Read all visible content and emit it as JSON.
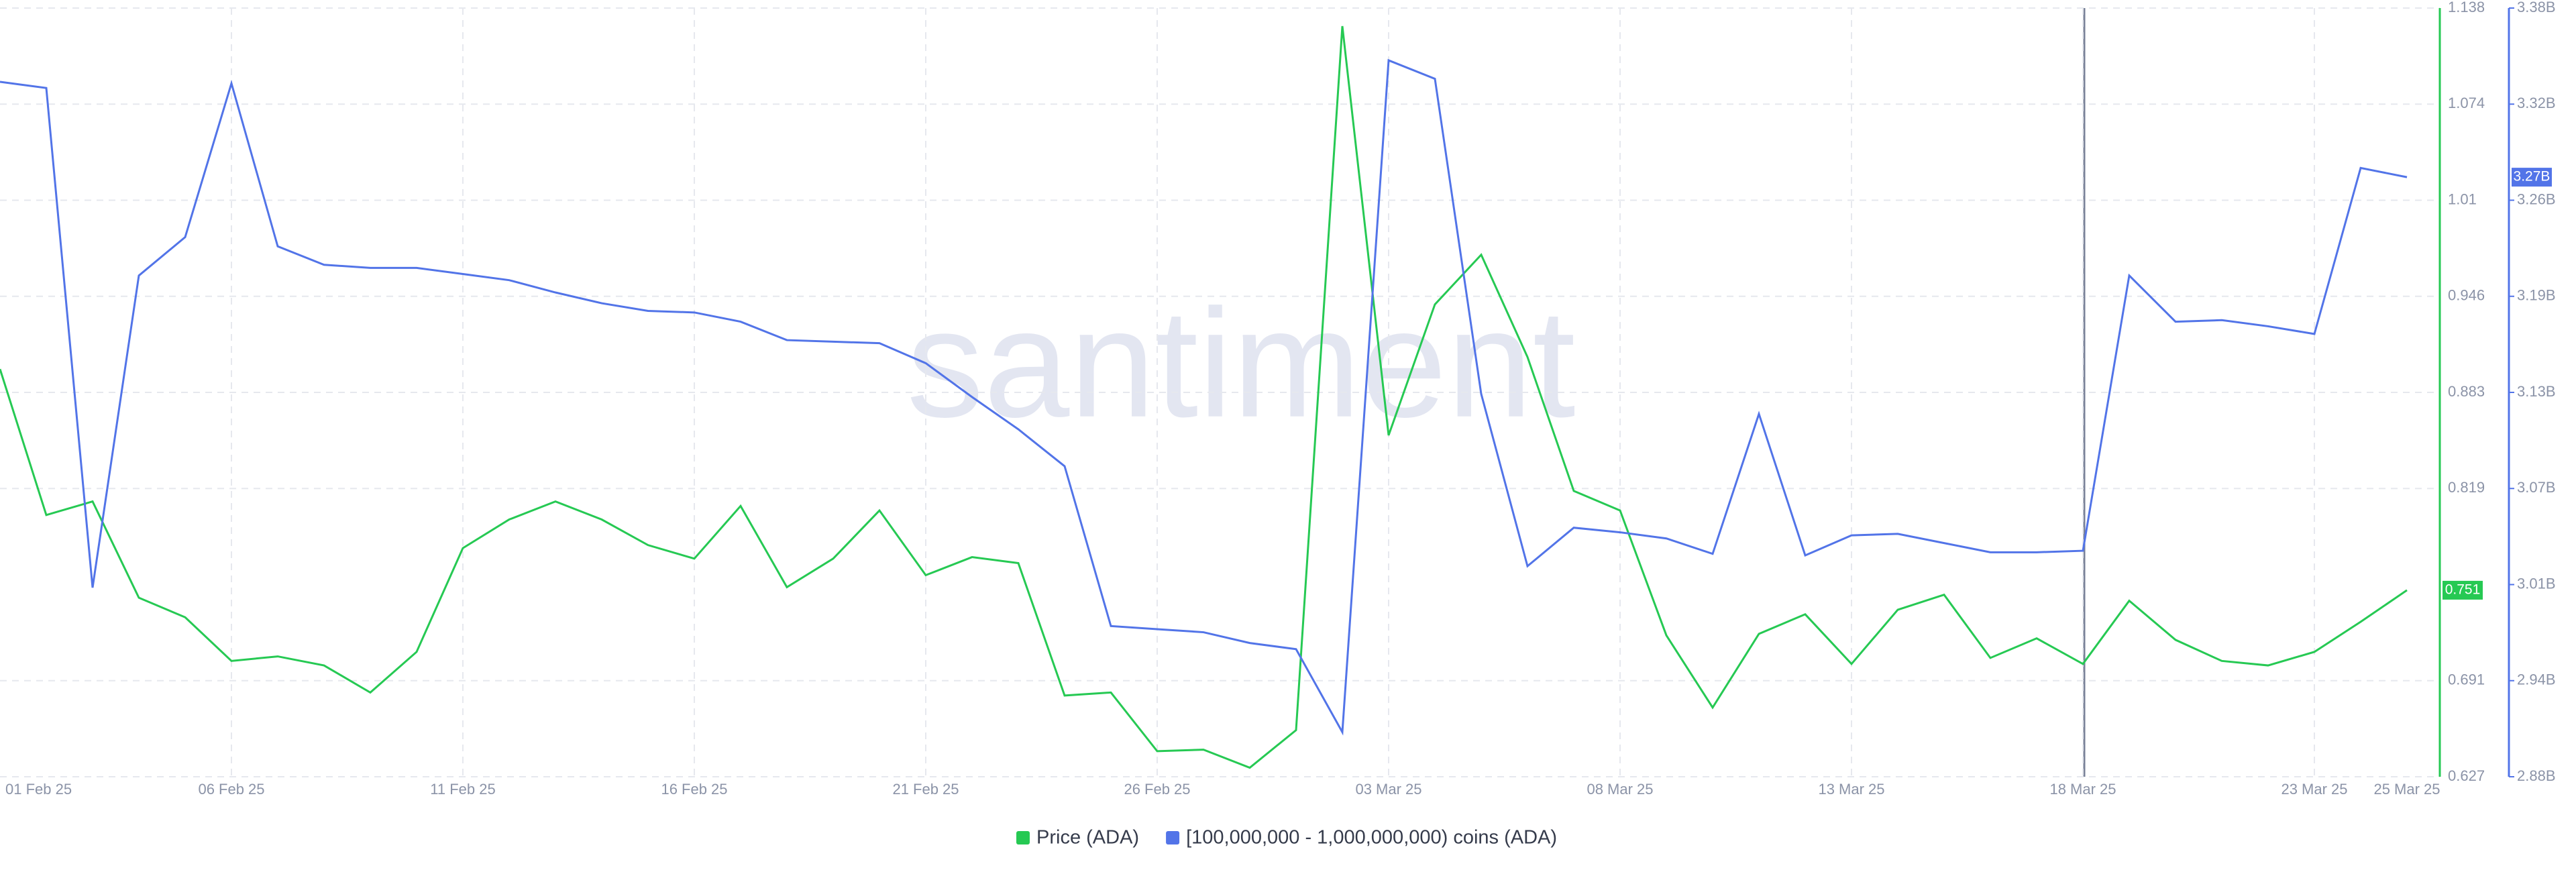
{
  "chart_data": {
    "type": "line",
    "watermark": "santiment",
    "categories": [
      "01 Feb 25",
      null,
      null,
      null,
      null,
      "06 Feb 25",
      null,
      null,
      null,
      null,
      "11 Feb 25",
      null,
      null,
      null,
      null,
      "16 Feb 25",
      null,
      null,
      null,
      null,
      "21 Feb 25",
      null,
      null,
      null,
      null,
      "26 Feb 25",
      null,
      null,
      null,
      null,
      "03 Mar 25",
      null,
      null,
      null,
      null,
      "08 Mar 25",
      null,
      null,
      null,
      null,
      "13 Mar 25",
      null,
      null,
      null,
      null,
      "18 Mar 25",
      null,
      null,
      null,
      null,
      "23 Mar 25",
      null,
      "25 Mar 25"
    ],
    "series": [
      {
        "name": "Price (ADA)",
        "color": "#26c953",
        "axis": "y",
        "last_label": "0.751",
        "values": [
          0.898,
          0.801,
          0.81,
          0.746,
          0.733,
          0.704,
          0.707,
          0.701,
          0.683,
          0.71,
          0.779,
          0.798,
          0.81,
          0.798,
          0.781,
          0.772,
          0.807,
          0.753,
          0.772,
          0.804,
          0.761,
          0.773,
          0.769,
          0.681,
          0.683,
          0.644,
          0.645,
          0.633,
          0.658,
          1.126,
          0.854,
          0.941,
          0.974,
          0.906,
          0.817,
          0.804,
          0.721,
          0.673,
          0.722,
          0.735,
          0.702,
          0.738,
          0.748,
          0.706,
          0.719,
          0.702,
          0.744,
          0.718,
          0.704,
          0.701,
          0.71,
          0.73,
          0.751
        ]
      },
      {
        "name": "[100,000,000 - 1,000,000,000) coins (ADA)",
        "color": "#5274e8",
        "axis": "y2",
        "last_label": "3.27B",
        "values": [
          3332000000,
          3328000000,
          3003000000,
          3206000000,
          3231000000,
          3331000000,
          3225000000,
          3213000000,
          3211000000,
          3211000000,
          3207000000,
          3203000000,
          3195000000,
          3188000000,
          3183000000,
          3182000000,
          3176000000,
          3164000000,
          3163000000,
          3162000000,
          3149000000,
          3127000000,
          3106000000,
          3082000000,
          2978000000,
          2976000000,
          2974000000,
          2967000000,
          2963000000,
          2909000000,
          3346000000,
          3334000000,
          3129000000,
          3017000000,
          3042000000,
          3039000000,
          3035000000,
          3025000000,
          3116000000,
          3024000000,
          3037000000,
          3038000000,
          3032000000,
          3026000000,
          3026000000,
          3027000000,
          3206000000,
          3176000000,
          3177000000,
          3173000000,
          3168000000,
          3276000000,
          3270000000
        ]
      }
    ],
    "ylim": [
      0.627,
      1.138
    ],
    "yticks": [
      {
        "value": 0.627,
        "label": "0.627"
      },
      {
        "value": 0.690875,
        "label": "0.691"
      },
      {
        "value": 0.818625,
        "label": "0.819"
      },
      {
        "value": 0.8825,
        "label": "0.883"
      },
      {
        "value": 0.946375,
        "label": "0.946"
      },
      {
        "value": 1.01025,
        "label": "1.01"
      },
      {
        "value": 1.074125,
        "label": "1.074"
      },
      {
        "value": 1.138,
        "label": "1.138"
      }
    ],
    "y2lim": [
      2880000000,
      3380000000
    ],
    "y2ticks": [
      {
        "value": 2880000000,
        "label": "2.88B"
      },
      {
        "value": 2942500000,
        "label": "2.94B"
      },
      {
        "value": 3005000000,
        "label": "3.01B"
      },
      {
        "value": 3067500000,
        "label": "3.07B"
      },
      {
        "value": 3130000000,
        "label": "3.13B"
      },
      {
        "value": 3192500000,
        "label": "3.19B"
      },
      {
        "value": 3255000000,
        "label": "3.26B"
      },
      {
        "value": 3317500000,
        "label": "3.32B"
      },
      {
        "value": 3380000000,
        "label": "3.38B"
      }
    ],
    "grid": true
  }
}
